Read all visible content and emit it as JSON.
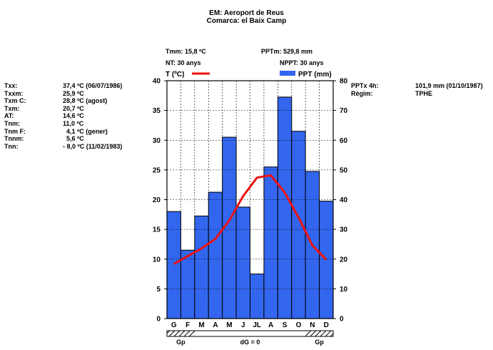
{
  "header": {
    "station": "EM: Aeroport de Reus",
    "comarca": "Comarca: el Baix Camp"
  },
  "summary": {
    "tmm": "Tmm: 15,8 ºC",
    "nt": "NT: 30 anys",
    "pptm": "PPTm:  529,8 mm",
    "nppt": "NPPT: 30 anys"
  },
  "temp_stats": [
    {
      "label": "Txx:",
      "value": "37,4 ºC (06/07/1986)"
    },
    {
      "label": "Txxm:",
      "value": "25,9 ºC"
    },
    {
      "label": "Txm C:",
      "value": "28,8 ºC (agost)"
    },
    {
      "label": "Txm:",
      "value": "20,7 ºC"
    },
    {
      "label": "AT:",
      "value": "14,6 ºC"
    },
    {
      "label": "Tnm:",
      "value": "11,0 ºC"
    },
    {
      "label": "Tnm F:",
      "value": "  4,1 ºC (gener)"
    },
    {
      "label": "Tnnm:",
      "value": "  5,6 ºC"
    },
    {
      "label": "Tnn:",
      "value": "- 8,0 ºC (11/02/1983)"
    }
  ],
  "ppt_stats": [
    {
      "label": "PPTx 4h:",
      "value": "101,9 mm (01/10/1987)"
    },
    {
      "label": "Règim:",
      "value": "TPHE"
    }
  ],
  "chart_data": {
    "type": "bar",
    "categories": [
      "G",
      "F",
      "M",
      "A",
      "M",
      "J",
      "JL",
      "A",
      "S",
      "O",
      "N",
      "D"
    ],
    "series": [
      {
        "name": "PPT (mm)",
        "type": "bar",
        "axis": "right",
        "color": "#3366ee",
        "values": [
          36,
          23,
          34.5,
          42.5,
          61,
          37.5,
          15,
          51,
          74.5,
          63,
          49.5,
          39.5
        ]
      },
      {
        "name": "T (ºC)",
        "type": "line",
        "axis": "left",
        "color": "#ee1111",
        "values": [
          9.2,
          10.5,
          11.8,
          13.4,
          16.5,
          20.6,
          23.7,
          24.1,
          21.2,
          17.0,
          12.3,
          9.9
        ]
      }
    ],
    "left_axis": {
      "label": "T (ºC)",
      "range": [
        0,
        40
      ],
      "ticks": [
        0,
        5,
        10,
        15,
        20,
        25,
        30,
        35,
        40
      ]
    },
    "right_axis": {
      "label": "PPT (mm)",
      "range": [
        0,
        80
      ],
      "ticks": [
        0,
        10,
        20,
        30,
        40,
        50,
        60,
        70,
        80
      ]
    },
    "grid": true,
    "legend": "top",
    "frost_band": {
      "months": [
        "G",
        "F",
        "N",
        "D"
      ],
      "labels": {
        "left": "Gp",
        "center": "dG = 0",
        "right": "Gp"
      }
    }
  }
}
